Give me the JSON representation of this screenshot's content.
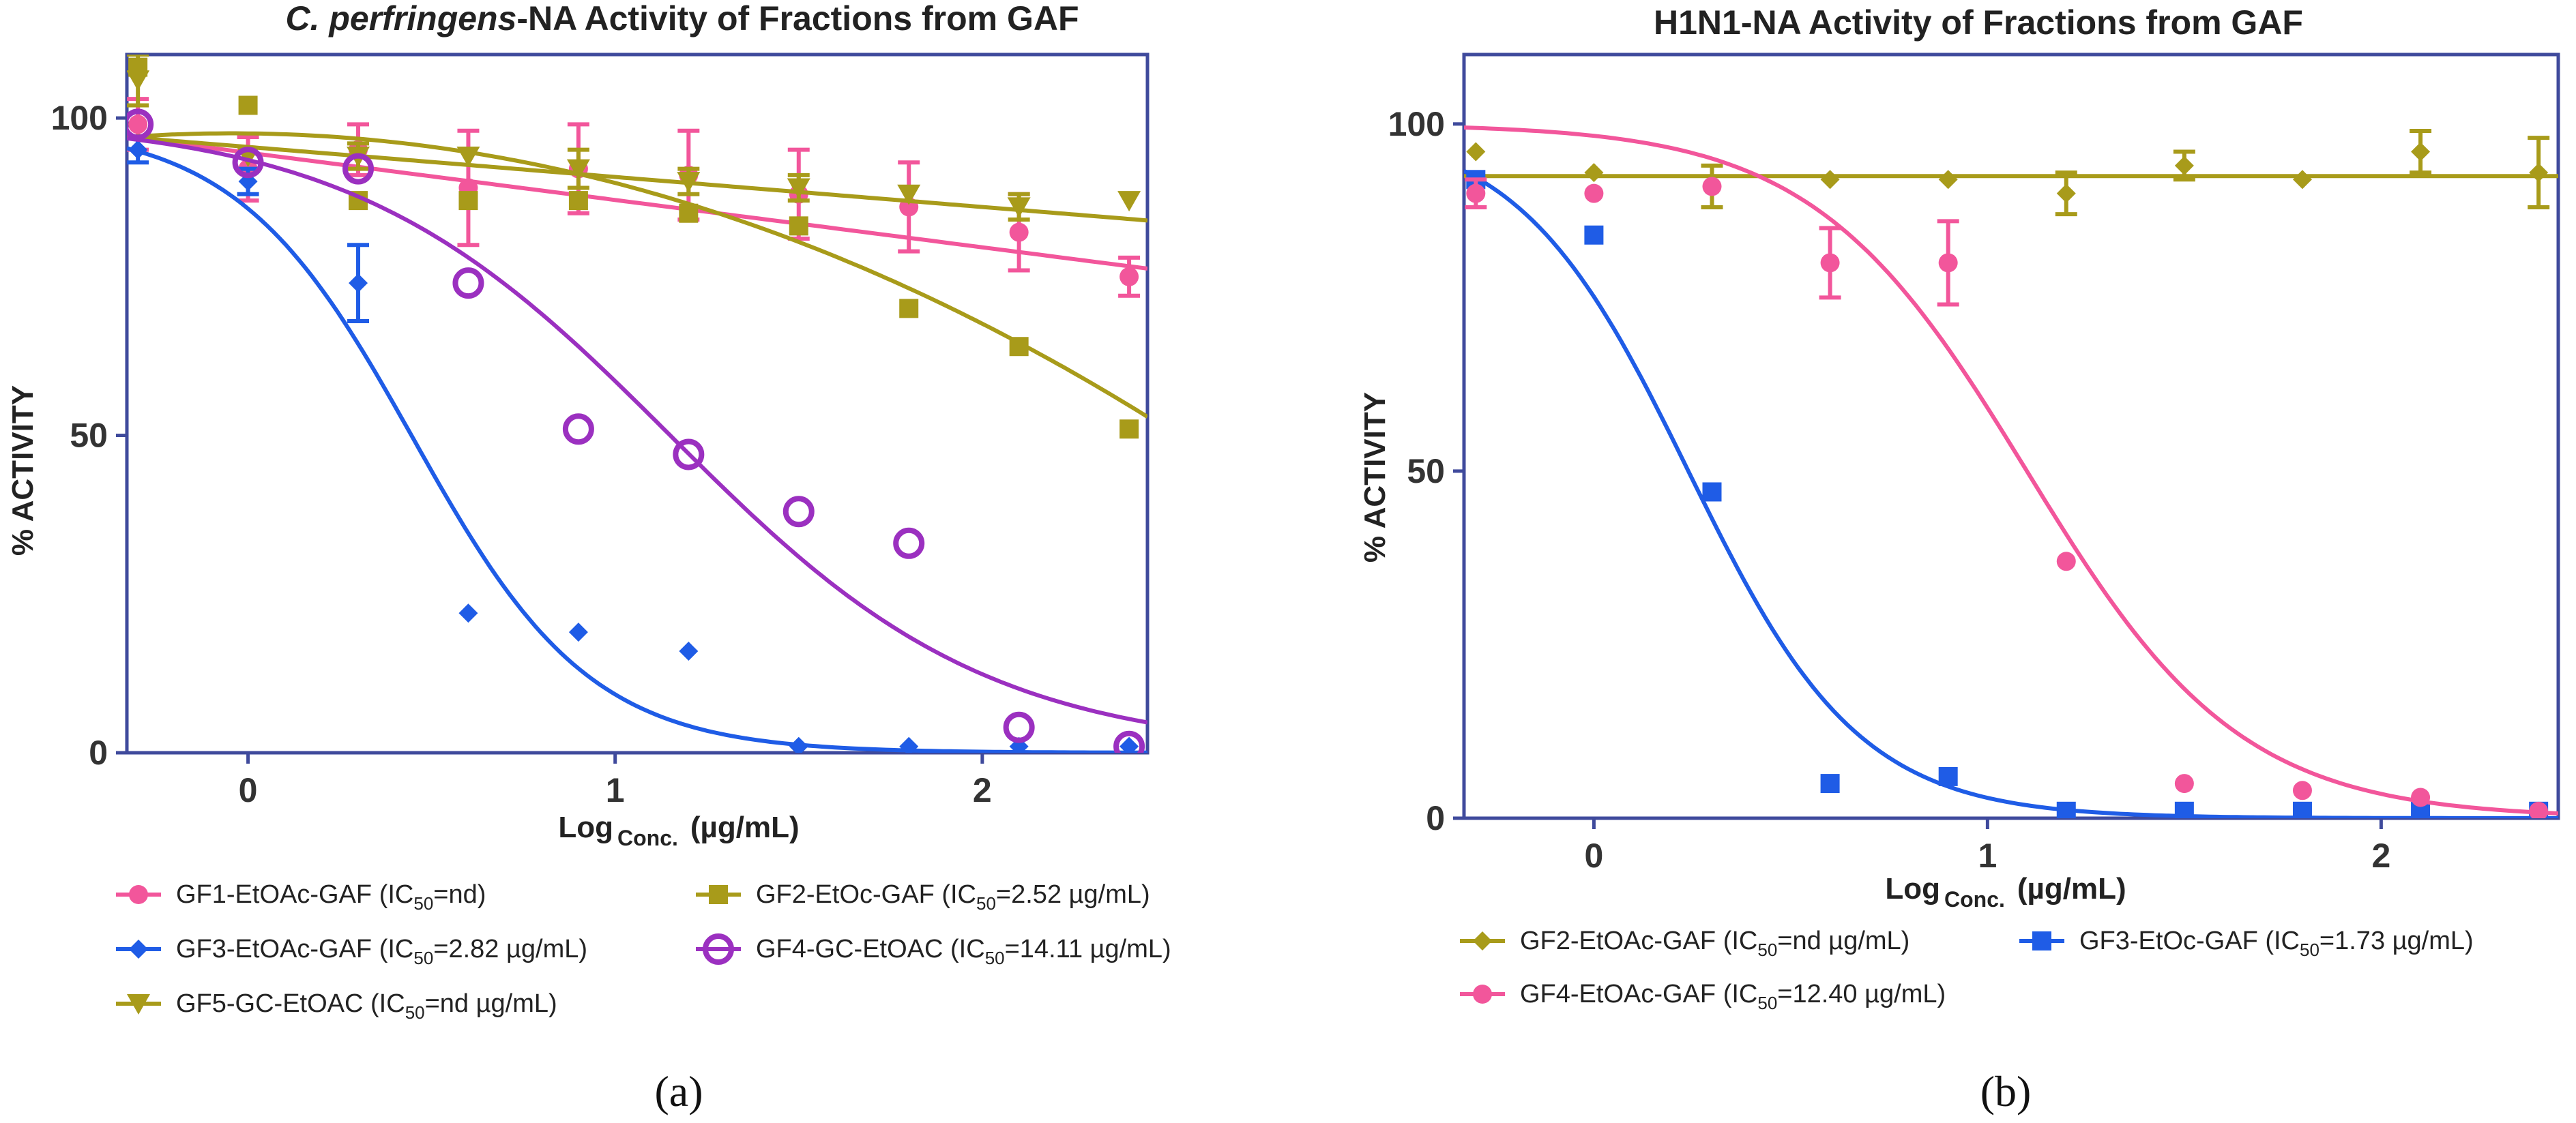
{
  "chart_data": [
    {
      "type": "scatter",
      "panel_label": "(a)",
      "title": "C. perfringens-NA Activity of Fractions from GAF",
      "title_italic": "C. perfringens",
      "title_rest": "-NA Activity of Fractions from GAF",
      "xlabel_main": "Log",
      "xlabel_sub": "Conc.",
      "xlabel_unit": "(µg/mL)",
      "ylabel": "% ACTIVITY",
      "xlim": [
        -0.33,
        2.45
      ],
      "ylim": [
        0,
        110
      ],
      "xticks": [
        0,
        1,
        2
      ],
      "yticks": [
        0,
        50,
        100
      ],
      "series": [
        {
          "name": "GF1-EtOAc-GAF",
          "ic50": "nd",
          "ic50_unit": "",
          "color": "#f2569b",
          "marker": "circle",
          "x": [
            -0.3,
            0,
            0.3,
            0.6,
            0.9,
            1.2,
            1.5,
            1.8,
            2.1,
            2.4
          ],
          "y": [
            99,
            92,
            95,
            89,
            92,
            91,
            88,
            86,
            82,
            75
          ],
          "err": [
            4,
            5,
            4,
            9,
            7,
            7,
            7,
            7,
            6,
            3
          ],
          "curve": {
            "model": "linear",
            "x": [
              -0.33,
              2.42
            ],
            "y": [
              97,
              76.5
            ]
          }
        },
        {
          "name": "GF3-EtOAc-GAF",
          "ic50": "2.82",
          "ic50_unit": "µg/mL",
          "color": "#1f5ce6",
          "marker": "diamond",
          "x": [
            -0.3,
            0,
            0.3,
            0.6,
            0.9,
            1.2,
            1.5,
            1.8,
            2.1,
            2.4
          ],
          "y": [
            95,
            90,
            74,
            22,
            19,
            16,
            1,
            1,
            1,
            1
          ],
          "err": [
            2,
            2,
            6,
            0,
            0,
            0,
            0,
            0,
            0,
            0
          ],
          "curve": {
            "model": "logistic",
            "top": 99,
            "bottom": 0,
            "logec50": 0.45,
            "slope": 1.8
          }
        },
        {
          "name": "GF5-GC-EtOAC",
          "ic50": "nd",
          "ic50_unit": "µg/mL",
          "color": "#a89b1a",
          "marker": "triangle-down",
          "x": [
            -0.3,
            0,
            0.3,
            0.6,
            0.9,
            1.2,
            1.5,
            1.8,
            2.1,
            2.4
          ],
          "y": [
            106,
            94,
            94,
            94,
            92,
            90,
            89,
            88,
            86,
            87
          ],
          "err": [
            4,
            0,
            2,
            0,
            3,
            2,
            2,
            0,
            2,
            0
          ],
          "curve": {
            "model": "linear",
            "x": [
              -0.33,
              2.42
            ],
            "y": [
              97,
              84
            ]
          }
        },
        {
          "name": "GF2-EtOc-GAF",
          "ic50": "2.52",
          "ic50_unit": "µg/mL",
          "color": "#a89b1a",
          "marker": "square",
          "x": [
            -0.3,
            0,
            0.3,
            0.6,
            0.9,
            1.2,
            1.5,
            1.8,
            2.1,
            2.4
          ],
          "y": [
            108,
            102,
            87,
            87,
            87,
            85,
            83,
            70,
            64,
            51
          ],
          "err": [
            0,
            0,
            0,
            0,
            0,
            0,
            0,
            0,
            0,
            0
          ],
          "curve": {
            "model": "quadratic",
            "x": [
              -0.33,
              1.05,
              2.42
            ],
            "y": [
              97,
              89,
              54
            ]
          }
        },
        {
          "name": "GF4-GC-EtOAC",
          "ic50": "14.11",
          "ic50_unit": "µg/mL",
          "color": "#9b30c0",
          "marker": "open-circle",
          "x": [
            -0.3,
            0,
            0.3,
            0.6,
            0.9,
            1.2,
            1.5,
            1.8,
            2.1,
            2.4
          ],
          "y": [
            99,
            93,
            92,
            74,
            51,
            47,
            38,
            33,
            4,
            1
          ],
          "err": [
            0,
            0,
            0,
            0,
            0,
            0,
            0,
            0,
            0,
            0
          ],
          "curve": {
            "model": "logistic",
            "top": 100,
            "bottom": 0,
            "logec50": 1.15,
            "slope": 1.0
          }
        }
      ],
      "legend_lines": [
        [
          {
            "series": 0,
            "text": "GF1-EtOAc-GAF (IC",
            "sub": "50",
            "after": "=nd)"
          },
          {
            "series": 3,
            "text": "GF2-EtOc-GAF (IC",
            "sub": "50",
            "after": "=2.52 µg/mL)"
          }
        ],
        [
          {
            "series": 1,
            "text": "GF3-EtOAc-GAF  (IC",
            "sub": "50",
            "after": "=2.82 µg/mL)"
          },
          {
            "series": 4,
            "text": "GF4-GC-EtOAC  (IC",
            "sub": "50",
            "after": "=14.11 µg/mL)"
          }
        ],
        [
          {
            "series": 2,
            "text": "GF5-GC-EtOAC  (IC",
            "sub": "50",
            "after": "=nd µg/mL)"
          }
        ]
      ]
    },
    {
      "type": "scatter",
      "panel_label": "(b)",
      "title": "H1N1-NA Activity of Fractions from GAF",
      "xlabel_main": "Log",
      "xlabel_sub": "Conc.",
      "xlabel_unit": "(µg/mL)",
      "ylabel": "% ACTIVITY",
      "xlim": [
        -0.33,
        2.45
      ],
      "ylim": [
        0,
        110
      ],
      "xticks": [
        0,
        1,
        2
      ],
      "yticks": [
        0,
        50,
        100
      ],
      "series": [
        {
          "name": "GF2-EtOAc-GAF",
          "ic50": "nd",
          "ic50_unit": "µg/mL",
          "color": "#a89b1a",
          "marker": "diamond",
          "x": [
            -0.3,
            0,
            0.3,
            0.6,
            0.9,
            1.2,
            1.5,
            1.8,
            2.1,
            2.4
          ],
          "y": [
            96,
            93,
            91,
            92,
            92,
            90,
            94,
            92,
            96,
            93
          ],
          "err": [
            0,
            0,
            3,
            0,
            0,
            3,
            2,
            0,
            3,
            5
          ],
          "curve": {
            "model": "linear",
            "x": [
              -0.33,
              2.42
            ],
            "y": [
              92.5,
              92.5
            ]
          }
        },
        {
          "name": "GF3-EtOc-GAF",
          "ic50": "1.73",
          "ic50_unit": "µg/mL",
          "color": "#1f5ce6",
          "marker": "square",
          "x": [
            -0.3,
            0,
            0.3,
            0.6,
            0.9,
            1.2,
            1.5,
            1.8,
            2.1,
            2.4
          ],
          "y": [
            92,
            84,
            47,
            5,
            6,
            1,
            1,
            1,
            1,
            1
          ],
          "err": [
            0,
            0,
            0,
            0,
            0,
            0,
            0,
            0,
            0,
            0
          ],
          "curve": {
            "model": "logistic",
            "top": 100,
            "bottom": 0,
            "logec50": 0.24,
            "slope": 2.0
          }
        },
        {
          "name": "GF4-EtOAc-GAF",
          "ic50": "12.40",
          "ic50_unit": "µg/mL",
          "color": "#f2569b",
          "marker": "circle",
          "x": [
            -0.3,
            0,
            0.3,
            0.6,
            0.9,
            1.2,
            1.5,
            1.8,
            2.1,
            2.4
          ],
          "y": [
            90,
            90,
            91,
            80,
            80,
            37,
            5,
            4,
            3,
            1
          ],
          "err": [
            2,
            0,
            0,
            5,
            6,
            0,
            0,
            0,
            0,
            0
          ],
          "curve": {
            "model": "logistic",
            "top": 100,
            "bottom": 0,
            "logec50": 1.1,
            "slope": 1.6
          }
        }
      ],
      "legend_lines": [
        [
          {
            "series": 0,
            "text": "GF2-EtOAc-GAF  (IC",
            "sub": "50",
            "after": "=nd µg/mL)"
          },
          {
            "series": 1,
            "text": "GF3-EtOc-GAF (IC",
            "sub": "50",
            "after": "=1.73 µg/mL)"
          }
        ],
        [
          {
            "series": 2,
            "text": "GF4-EtOAc-GAF (IC",
            "sub": "50",
            "after": "=12.40 µg/mL)"
          }
        ]
      ]
    }
  ]
}
